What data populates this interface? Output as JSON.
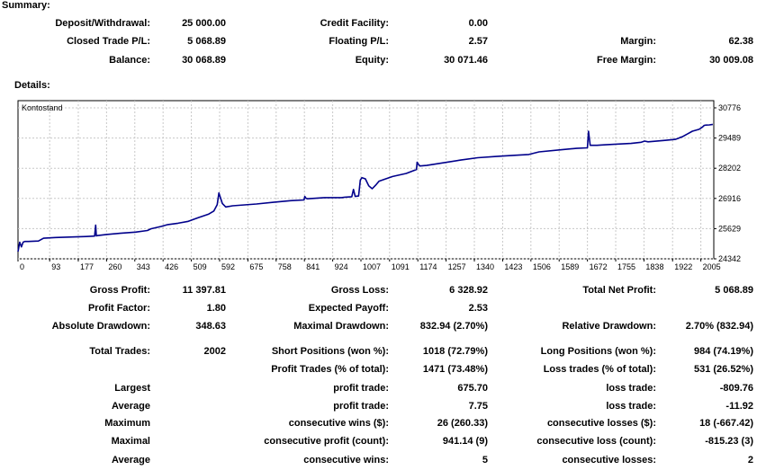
{
  "summary": {
    "heading": "Summary:",
    "deposit_withdrawal": {
      "label": "Deposit/Withdrawal:",
      "value": "25 000.00"
    },
    "credit_facility": {
      "label": "Credit Facility:",
      "value": "0.00"
    },
    "closed_trade_pl": {
      "label": "Closed Trade P/L:",
      "value": "5 068.89"
    },
    "floating_pl": {
      "label": "Floating P/L:",
      "value": "2.57"
    },
    "margin": {
      "label": "Margin:",
      "value": "62.38"
    },
    "balance": {
      "label": "Balance:",
      "value": "30 068.89"
    },
    "equity": {
      "label": "Equity:",
      "value": "30 071.46"
    },
    "free_margin": {
      "label": "Free Margin:",
      "value": "30 009.08"
    }
  },
  "details": {
    "heading": "Details:",
    "gross_profit": {
      "label": "Gross Profit:",
      "value": "11 397.81"
    },
    "gross_loss": {
      "label": "Gross Loss:",
      "value": "6 328.92"
    },
    "total_net_profit": {
      "label": "Total Net Profit:",
      "value": "5 068.89"
    },
    "profit_factor": {
      "label": "Profit Factor:",
      "value": "1.80"
    },
    "expected_payoff": {
      "label": "Expected Payoff:",
      "value": "2.53"
    },
    "absolute_drawdown": {
      "label": "Absolute Drawdown:",
      "value": "348.63"
    },
    "maximal_drawdown": {
      "label": "Maximal Drawdown:",
      "value": "832.94 (2.70%)"
    },
    "relative_drawdown": {
      "label": "Relative Drawdown:",
      "value": "2.70% (832.94)"
    },
    "total_trades": {
      "label": "Total Trades:",
      "value": "2002"
    },
    "short_positions": {
      "label": "Short Positions (won %):",
      "value": "1018 (72.79%)"
    },
    "long_positions": {
      "label": "Long Positions (won %):",
      "value": "984 (74.19%)"
    },
    "profit_trades": {
      "label": "Profit Trades (% of total):",
      "value": "1471 (73.48%)"
    },
    "loss_trades": {
      "label": "Loss trades (% of total):",
      "value": "531 (26.52%)"
    },
    "largest": {
      "label": "Largest",
      "profit_label": "profit trade:",
      "profit_value": "675.70",
      "loss_label": "loss trade:",
      "loss_value": "-809.76"
    },
    "average": {
      "label": "Average",
      "profit_label": "profit trade:",
      "profit_value": "7.75",
      "loss_label": "loss trade:",
      "loss_value": "-11.92"
    },
    "maximum": {
      "label": "Maximum",
      "profit_label": "consecutive wins ($):",
      "profit_value": "26 (260.33)",
      "loss_label": "consecutive losses ($):",
      "loss_value": "18 (-667.42)"
    },
    "maximal": {
      "label": "Maximal",
      "profit_label": "consecutive profit (count):",
      "profit_value": "941.14 (9)",
      "loss_label": "consecutive loss (count):",
      "loss_value": "-815.23 (3)"
    },
    "average_consecutive": {
      "label": "Average",
      "profit_label": "consecutive wins:",
      "profit_value": "5",
      "loss_label": "consecutive losses:",
      "loss_value": "2"
    }
  },
  "chart_data": {
    "type": "line",
    "title": "Kontostand",
    "x_ticks": [
      0,
      93,
      177,
      260,
      343,
      426,
      509,
      592,
      675,
      758,
      841,
      924,
      1007,
      1091,
      1174,
      1257,
      1340,
      1423,
      1506,
      1589,
      1672,
      1755,
      1838,
      1922,
      2005
    ],
    "y_ticks": [
      24342,
      25629,
      26916,
      28202,
      29489,
      30776
    ],
    "xlim": [
      0,
      2043
    ],
    "ylim": [
      24342,
      30776
    ],
    "grid": true,
    "colors": {
      "line": "#00008b",
      "grid": "#c8c8c8",
      "border": "#000000"
    },
    "series": [
      {
        "x": [
          0,
          5,
          10,
          15,
          20,
          30,
          60,
          75,
          110,
          150,
          200,
          225,
          228,
          230,
          232,
          260,
          300,
          345,
          380,
          390,
          420,
          440,
          470,
          500,
          530,
          560,
          575,
          585,
          590,
          600,
          610,
          630,
          700,
          750,
          800,
          840,
          842,
          846,
          850,
          900,
          950,
          960,
          980,
          985,
          990,
          1000,
          1005,
          1010,
          1020,
          1030,
          1040,
          1050,
          1060,
          1080,
          1100,
          1140,
          1170,
          1172,
          1176,
          1180,
          1200,
          1300,
          1350,
          1400,
          1420,
          1470,
          1500,
          1530,
          1600,
          1640,
          1672,
          1675,
          1680,
          1700,
          1720,
          1750,
          1800,
          1830,
          1840,
          1850,
          1900,
          1930,
          1940,
          1945,
          1950,
          1980,
          2000,
          2010,
          2015,
          2020,
          2030,
          2040
        ],
        "y": [
          24650,
          25050,
          24850,
          25050,
          25080,
          25080,
          25100,
          25220,
          25250,
          25270,
          25290,
          25310,
          25780,
          25320,
          25330,
          25380,
          25430,
          25480,
          25550,
          25620,
          25720,
          25800,
          25860,
          25940,
          26100,
          26250,
          26380,
          26650,
          27150,
          26700,
          26550,
          26600,
          26680,
          26750,
          26820,
          26850,
          27000,
          26920,
          26900,
          26950,
          26950,
          26970,
          26990,
          27300,
          27000,
          27020,
          27700,
          27800,
          27750,
          27450,
          27330,
          27480,
          27650,
          27750,
          27850,
          27980,
          28150,
          28460,
          28360,
          28300,
          28320,
          28550,
          28650,
          28700,
          28720,
          28760,
          28790,
          28900,
          29000,
          29050,
          29070,
          29780,
          29180,
          29180,
          29200,
          29220,
          29260,
          29310,
          29360,
          29330,
          29390,
          29430,
          29480,
          29520,
          29540,
          29780,
          29860,
          29960,
          30030,
          30040,
          30050,
          30071
        ]
      }
    ]
  }
}
